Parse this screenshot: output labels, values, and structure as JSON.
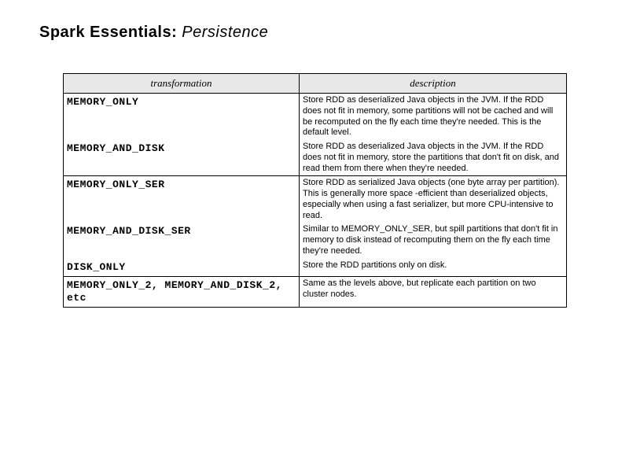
{
  "title": {
    "bold": "Spark Essentials:",
    "italic": " Persistence"
  },
  "headers": {
    "transformation": "transformation",
    "description": "description"
  },
  "rows": {
    "r1": {
      "name": "MEMORY_ONLY",
      "desc": "Store RDD as deserialized Java objects in the JVM. If the RDD does not fit in memory, some partitions will not be cached and will be recomputed on the fly each time they're needed. This is the default level."
    },
    "r2": {
      "name": "MEMORY_AND_DISK",
      "desc": "Store RDD as deserialized Java objects in the JVM. If the RDD does not fit in memory, store the partitions that don't fit on disk, and read them from there when they're needed."
    },
    "r3": {
      "name": "MEMORY_ONLY_SER",
      "desc": "Store RDD as serialized Java objects (one byte array per partition). This is generally more space -efficient than deserialized objects, especially when using a fast serializer, but more CPU-intensive to read."
    },
    "r4": {
      "name": "MEMORY_AND_DISK_SER",
      "desc": "Similar to MEMORY_ONLY_SER, but spill partitions that don't fit in memory to disk instead of recomputing them on the fly each time they're needed."
    },
    "r5": {
      "name": "DISK_ONLY",
      "desc": "Store the RDD partitions only on disk."
    },
    "r6": {
      "name": "MEMORY_ONLY_2, MEMORY_AND_DISK_2, etc",
      "desc": "Same as the levels above, but replicate each partition on two cluster nodes."
    }
  }
}
